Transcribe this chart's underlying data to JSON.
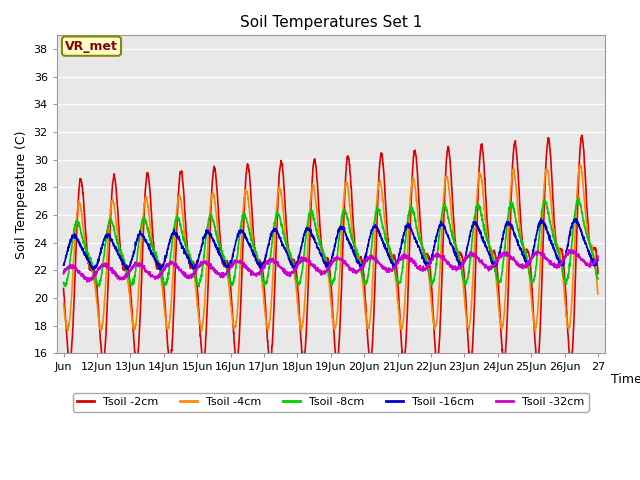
{
  "title": "Soil Temperatures Set 1",
  "xlabel": "Time",
  "ylabel": "Soil Temperature (C)",
  "ylim": [
    16,
    39
  ],
  "yticks": [
    16,
    18,
    20,
    22,
    24,
    26,
    28,
    30,
    32,
    34,
    36,
    38
  ],
  "series": [
    {
      "label": "Tsoil -2cm",
      "color": "#dd0000",
      "lw": 1.2
    },
    {
      "label": "Tsoil -4cm",
      "color": "#ff8800",
      "lw": 1.2
    },
    {
      "label": "Tsoil -8cm",
      "color": "#00cc00",
      "lw": 1.2
    },
    {
      "label": "Tsoil -16cm",
      "color": "#0000cc",
      "lw": 1.2
    },
    {
      "label": "Tsoil -32cm",
      "color": "#cc00cc",
      "lw": 1.2
    }
  ],
  "annotation_text": "VR_met",
  "annotation_bg": "#ffffcc",
  "annotation_border": "#888800",
  "fig_bg": "#ffffff",
  "plot_bg": "#e8e8e8",
  "grid_color": "#ffffff",
  "n_days": 16,
  "start_day": 11,
  "pts_per_day": 144
}
